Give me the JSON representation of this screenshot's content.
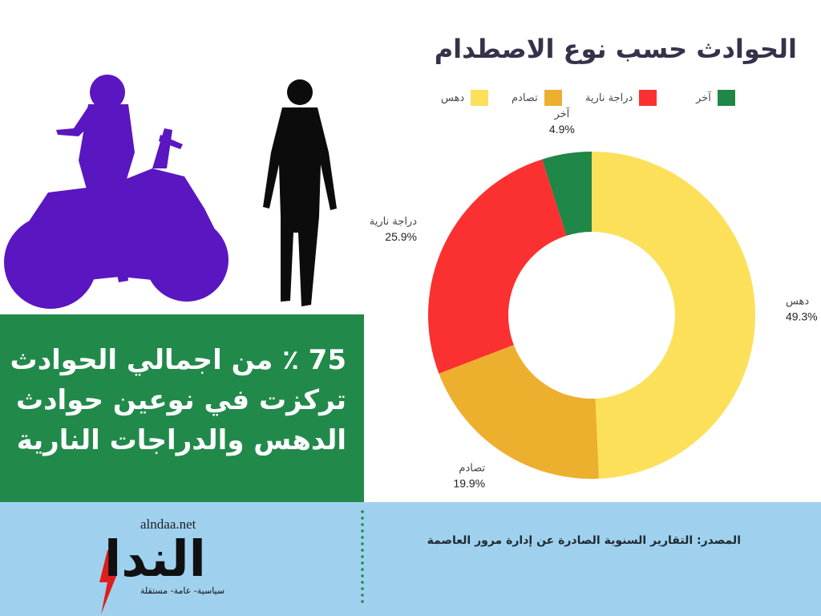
{
  "title": "الحوادث حسب نوع الاصطدام",
  "headline": "75 ٪ من اجمالي الحوادث تركزت في نوعين حوادث الدهس والدراجات النارية",
  "source": "المصدر: التقارير السنوية الصادرة عن إدارة مرور العاصمة",
  "logo": {
    "url": "alndaa.net",
    "word": "الندا",
    "tagline": "سياسية- عامة- مستقلة"
  },
  "colors": {
    "green": "#218a4b",
    "footer": "#9fd1ef",
    "purple": "#5a16c0",
    "title": "#35324a"
  },
  "chart_data": {
    "type": "donut",
    "title": "الحوادث حسب نوع الاصطدام",
    "legend_position": "top",
    "slices": [
      {
        "label": "دهس",
        "value": 49.3,
        "display": "49.3%",
        "color": "#fce05a"
      },
      {
        "label": "تصادم",
        "value": 19.9,
        "display": "19.9%",
        "color": "#edaf2e"
      },
      {
        "label": "دراجة نارية",
        "value": 25.9,
        "display": "25.9%",
        "color": "#fb3030"
      },
      {
        "label": "آخر",
        "value": 4.9,
        "display": "4.9%",
        "color": "#1f8747"
      }
    ]
  }
}
